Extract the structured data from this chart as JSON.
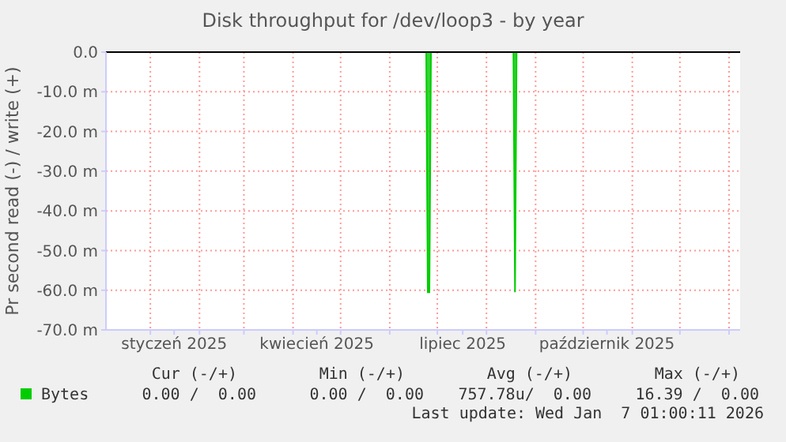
{
  "chart_data": {
    "type": "area",
    "title": "Disk throughput for /dev/loop3 - by year",
    "ylabel": "Pr second read (-) / write (+)",
    "x": [
      "2024-12-04",
      "2025-06-24",
      "2025-06-25",
      "2025-06-26",
      "2025-06-27",
      "2025-08-18",
      "2025-08-19",
      "2025-08-20",
      "2026-01-08"
    ],
    "series": [
      {
        "name": "Bytes",
        "color": "#00cc00",
        "values": [
          0,
          0,
          -60.5,
          -60.5,
          0,
          0,
          -60.5,
          0,
          0
        ]
      }
    ],
    "xlim": [
      "2024-12-04",
      "2026-01-08"
    ],
    "xticks": [
      {
        "value": "2025-01-01",
        "label": null
      },
      {
        "value": "2025-01-16",
        "label": "styczeń 2025"
      },
      {
        "value": "2025-02-01",
        "label": null
      },
      {
        "value": "2025-03-01",
        "label": null
      },
      {
        "value": "2025-04-01",
        "label": null
      },
      {
        "value": "2025-04-16",
        "label": "kwiecień 2025"
      },
      {
        "value": "2025-05-01",
        "label": null
      },
      {
        "value": "2025-06-01",
        "label": null
      },
      {
        "value": "2025-07-01",
        "label": null
      },
      {
        "value": "2025-07-17",
        "label": "lipiec 2025"
      },
      {
        "value": "2025-08-01",
        "label": null
      },
      {
        "value": "2025-09-01",
        "label": null
      },
      {
        "value": "2025-10-01",
        "label": null
      },
      {
        "value": "2025-10-16",
        "label": "październik 2025"
      },
      {
        "value": "2025-11-01",
        "label": null
      },
      {
        "value": "2025-12-01",
        "label": null
      },
      {
        "value": "2026-01-01",
        "label": null
      }
    ],
    "ylim": [
      -70,
      0
    ],
    "yticks": [
      {
        "value": 0,
        "label": "0.0"
      },
      {
        "value": -10,
        "label": "-10.0 m"
      },
      {
        "value": -20,
        "label": "-20.0 m"
      },
      {
        "value": -30,
        "label": "-30.0 m"
      },
      {
        "value": -40,
        "label": "-40.0 m"
      },
      {
        "value": -50,
        "label": "-50.0 m"
      },
      {
        "value": -60,
        "label": "-60.0 m"
      },
      {
        "value": -70,
        "label": "-70.0 m"
      }
    ],
    "grid": true,
    "legend": "bottom",
    "ref_lines": [
      {
        "axis": "y",
        "value": 0,
        "color": "#000000"
      }
    ],
    "annotations": [
      "Cur (-/+)",
      "Min (-/+)",
      "Avg (-/+)",
      "Max (-/+)",
      "0.00 /  0.00",
      "0.00 /  0.00",
      "757.78u/  0.00",
      "16.39 /  0.00",
      "Last update: Wed Jan  7 01:00:11 2026"
    ]
  }
}
